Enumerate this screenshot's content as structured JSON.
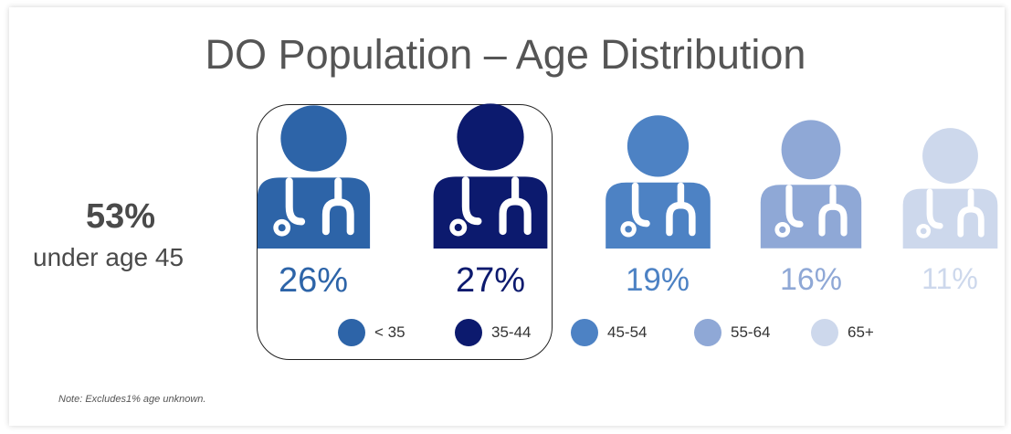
{
  "title": "DO Population – Age Distribution",
  "summary": {
    "value": "53%",
    "label": "under age 45"
  },
  "note": "Note: Excludes1% age unknown.",
  "chart_data": {
    "type": "pictograph",
    "title": "DO Population – Age Distribution",
    "categories": [
      "< 35",
      "35-44",
      "45-54",
      "55-64",
      "65+"
    ],
    "values": [
      26,
      27,
      19,
      16,
      11
    ],
    "labels": [
      "26%",
      "27%",
      "19%",
      "16%",
      "11%"
    ],
    "colors": [
      "#2d64a8",
      "#0c1a6e",
      "#4d82c4",
      "#8fa8d6",
      "#cdd8ec"
    ],
    "legend": {
      "position": "bottom",
      "labels": [
        "< 35",
        "35-44",
        "45-54",
        "55-64",
        "65+"
      ]
    },
    "highlight": {
      "categories": [
        "< 35",
        "35-44"
      ],
      "value": "53%",
      "label": "under age 45"
    }
  }
}
